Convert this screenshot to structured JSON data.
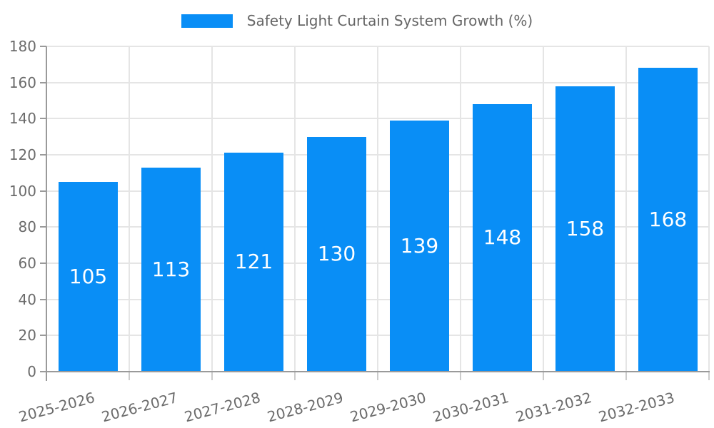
{
  "chart_data": {
    "type": "bar",
    "title": "Safety Light Curtain System Growth (%)",
    "categories": [
      "2025-2026",
      "2026-2027",
      "2027-2028",
      "2028-2029",
      "2029-2030",
      "2030-2031",
      "2031-2032",
      "2032-2033"
    ],
    "values": [
      105,
      113,
      121,
      130,
      139,
      148,
      158,
      168
    ],
    "series": [
      {
        "name": "Safety Light Curtain System Growth (%)",
        "values": [
          105,
          113,
          121,
          130,
          139,
          148,
          158,
          168
        ]
      }
    ],
    "value_labels_visible": true,
    "xlabel": "",
    "ylabel": "",
    "ylim": [
      0,
      180
    ],
    "ytick_step": 20,
    "yticks": [
      0,
      20,
      40,
      60,
      80,
      100,
      120,
      140,
      160,
      180
    ],
    "grid": true,
    "legend_position": "top",
    "x_label_rotation_deg": -15,
    "colors": {
      "bar": "#098ef6",
      "bar_value_text": "#ffffff",
      "grid": "#e5e5e5",
      "axis": "#9a9a9a",
      "boundary_tick": "#cccccc",
      "text": "#6b6b6b",
      "legend_text": "#666666"
    }
  }
}
